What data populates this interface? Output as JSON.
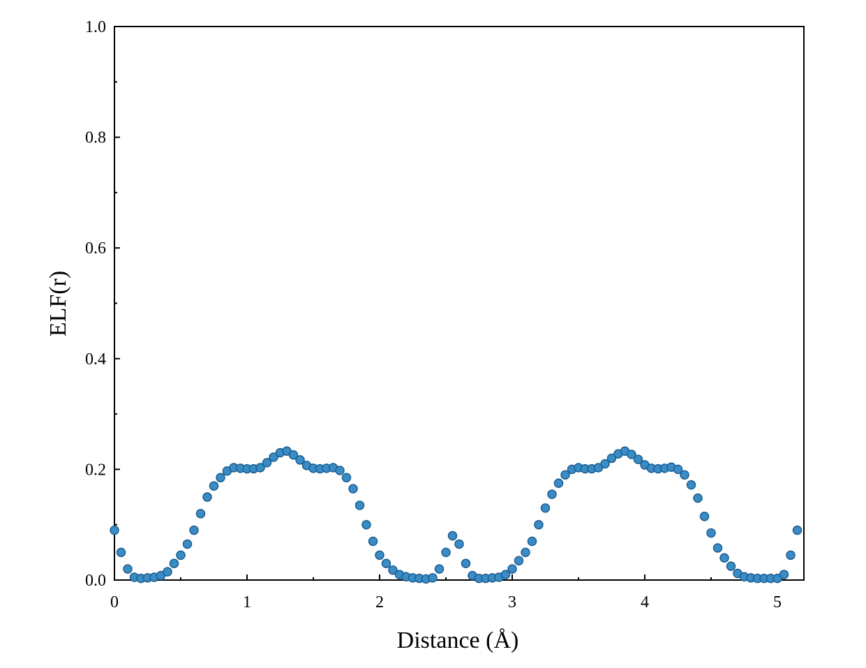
{
  "chart_data": {
    "type": "scatter",
    "xlabel": "Distance (Å)",
    "ylabel": "ELF(r)",
    "xlim": [
      0,
      5.2
    ],
    "ylim": [
      0,
      1
    ],
    "xticks": [
      0,
      1,
      2,
      3,
      4,
      5
    ],
    "yticks": [
      {
        "value": 0,
        "label": "0.0"
      },
      0.2,
      0.4,
      0.6,
      0.8,
      {
        "value": 1,
        "label": "1.0"
      }
    ],
    "xminorticks": [
      0.5,
      1.5,
      2.5,
      3.5,
      4.5
    ],
    "yminorticks": [
      0.1,
      0.3,
      0.5,
      0.7,
      0.9
    ],
    "grid": false,
    "x": [
      0,
      0.05,
      0.1,
      0.15,
      0.2,
      0.25,
      0.3,
      0.35,
      0.4,
      0.45,
      0.5,
      0.55,
      0.6,
      0.65,
      0.7,
      0.75,
      0.8,
      0.85,
      0.9,
      0.95,
      1,
      1.05,
      1.1,
      1.15,
      1.2,
      1.25,
      1.3,
      1.35,
      1.4,
      1.45,
      1.5,
      1.55,
      1.6,
      1.65,
      1.7,
      1.75,
      1.8,
      1.85,
      1.9,
      1.95,
      2,
      2.05,
      2.1,
      2.15,
      2.2,
      2.25,
      2.3,
      2.35,
      2.4,
      2.45,
      2.5,
      2.55,
      2.6,
      2.65,
      2.7,
      2.75,
      2.8,
      2.85,
      2.9,
      2.95,
      3,
      3.05,
      3.1,
      3.15,
      3.2,
      3.25,
      3.3,
      3.35,
      3.4,
      3.45,
      3.5,
      3.55,
      3.6,
      3.65,
      3.7,
      3.75,
      3.8,
      3.85,
      3.9,
      3.95,
      4,
      4.05,
      4.1,
      4.15,
      4.2,
      4.25,
      4.3,
      4.35,
      4.4,
      4.45,
      4.5,
      4.55,
      4.6,
      4.65,
      4.7,
      4.75,
      4.8,
      4.85,
      4.9,
      4.95,
      5,
      5.05,
      5.1,
      5.15
    ],
    "series": [
      {
        "color": "#3a8cc7",
        "values": [
          0.09,
          0.05,
          0.02,
          0.005,
          0.003,
          0.004,
          0.005,
          0.008,
          0.015,
          0.03,
          0.045,
          0.065,
          0.09,
          0.12,
          0.15,
          0.17,
          0.185,
          0.197,
          0.203,
          0.202,
          0.201,
          0.201,
          0.203,
          0.212,
          0.222,
          0.23,
          0.233,
          0.226,
          0.217,
          0.207,
          0.202,
          0.201,
          0.202,
          0.203,
          0.198,
          0.185,
          0.165,
          0.135,
          0.1,
          0.07,
          0.045,
          0.03,
          0.018,
          0.01,
          0.006,
          0.004,
          0.003,
          0.002,
          0.004,
          0.02,
          0.05,
          0.08,
          0.065,
          0.03,
          0.008,
          0.003,
          0.003,
          0.004,
          0.005,
          0.01,
          0.02,
          0.035,
          0.05,
          0.07,
          0.1,
          0.13,
          0.155,
          0.175,
          0.19,
          0.2,
          0.203,
          0.201,
          0.201,
          0.203,
          0.21,
          0.22,
          0.228,
          0.233,
          0.227,
          0.218,
          0.208,
          0.202,
          0.201,
          0.202,
          0.204,
          0.2,
          0.19,
          0.172,
          0.148,
          0.115,
          0.085,
          0.058,
          0.04,
          0.025,
          0.012,
          0.006,
          0.004,
          0.003,
          0.003,
          0.003,
          0.003,
          0.01,
          0.045,
          0.09
        ]
      }
    ]
  }
}
